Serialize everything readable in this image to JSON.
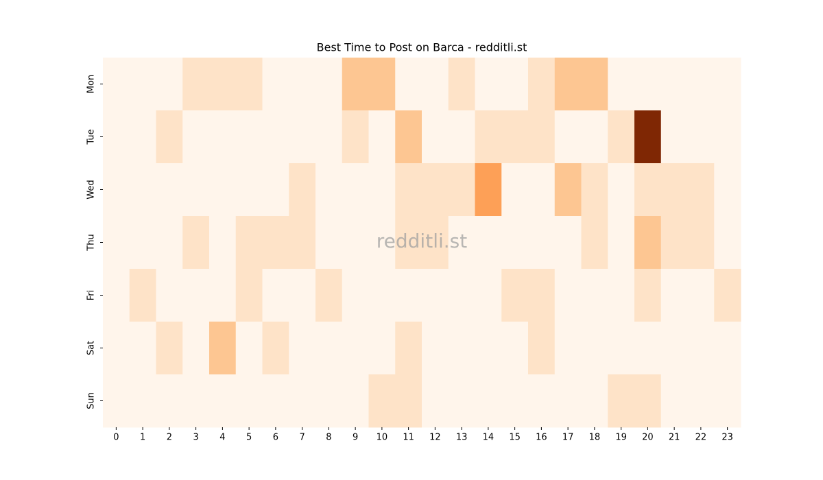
{
  "chart_data": {
    "type": "heatmap",
    "title": "Best Time to Post on Barca - redditli.st",
    "watermark": "redditli.st",
    "colormap": "Oranges",
    "x": [
      0,
      1,
      2,
      3,
      4,
      5,
      6,
      7,
      8,
      9,
      10,
      11,
      12,
      13,
      14,
      15,
      16,
      17,
      18,
      19,
      20,
      21,
      22,
      23
    ],
    "y": [
      "Mon",
      "Tue",
      "Wed",
      "Thu",
      "Fri",
      "Sat",
      "Sun"
    ],
    "values": [
      [
        0,
        0,
        0,
        1,
        1,
        1,
        0,
        0,
        0,
        2,
        2,
        0,
        0,
        1,
        0,
        0,
        1,
        2,
        2,
        0,
        0,
        0,
        0,
        0
      ],
      [
        0,
        0,
        1,
        0,
        0,
        0,
        0,
        0,
        0,
        1,
        0,
        2,
        0,
        0,
        1,
        1,
        1,
        0,
        0,
        1,
        7,
        0,
        0,
        0
      ],
      [
        0,
        0,
        0,
        0,
        0,
        0,
        0,
        1,
        0,
        0,
        0,
        1,
        1,
        1,
        3,
        0,
        0,
        2,
        1,
        0,
        1,
        1,
        1,
        0
      ],
      [
        0,
        0,
        0,
        1,
        0,
        1,
        1,
        1,
        0,
        0,
        0,
        1,
        1,
        0,
        0,
        0,
        0,
        0,
        1,
        0,
        2,
        1,
        1,
        0
      ],
      [
        0,
        1,
        0,
        0,
        0,
        1,
        0,
        0,
        1,
        0,
        0,
        0,
        0,
        0,
        0,
        1,
        1,
        0,
        0,
        0,
        1,
        0,
        0,
        1
      ],
      [
        0,
        0,
        1,
        0,
        2,
        0,
        1,
        0,
        0,
        0,
        0,
        1,
        0,
        0,
        0,
        0,
        1,
        0,
        0,
        0,
        0,
        0,
        0,
        0
      ],
      [
        0,
        0,
        0,
        0,
        0,
        0,
        0,
        0,
        0,
        0,
        1,
        1,
        0,
        0,
        0,
        0,
        0,
        0,
        0,
        1,
        1,
        0,
        0,
        0
      ]
    ]
  }
}
